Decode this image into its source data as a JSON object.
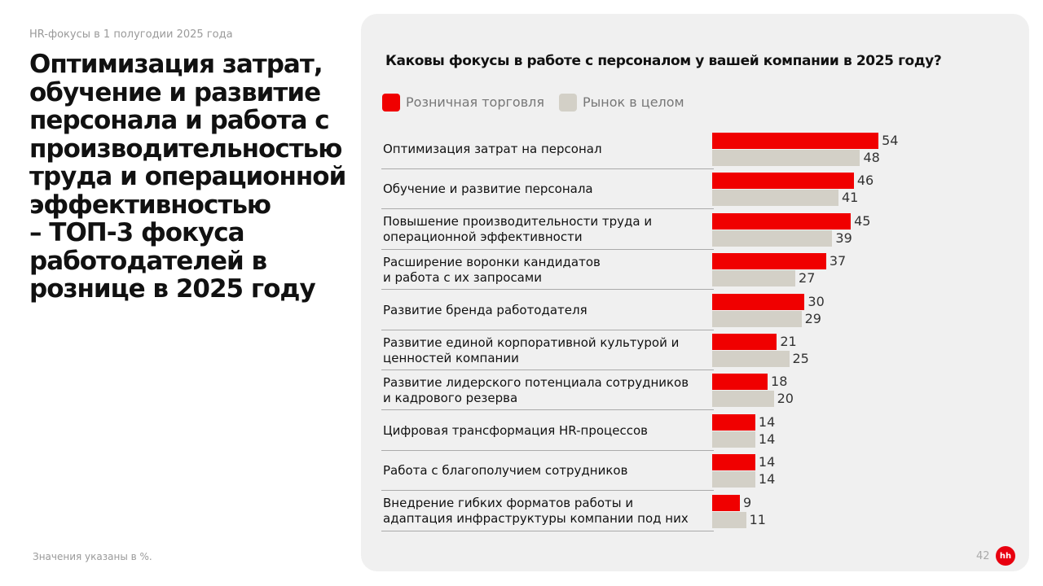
{
  "slide": {
    "subtitle": "HR-фокусы в 1 полугодии 2025 года",
    "headline": [
      "Оптимизация затрат,",
      "обучение и развитие",
      "персонала и работа с",
      "производительностью",
      "труда и операционной",
      "эффективностью",
      "– ТОП-3 фокуса",
      "работодателей в",
      "рознице в 2025 году"
    ],
    "footnote": "Значения указаны в %.",
    "page_number": "42",
    "logo": "hh"
  },
  "chart_data": {
    "type": "bar",
    "orientation": "horizontal",
    "title": "Каковы фокусы в работе с персоналом у вашей компании в 2025 году?",
    "categories": [
      "Оптимизация затрат на персонал",
      "Обучение и развитие персонала",
      "Повышение производительности труда и\nоперационной эффективности",
      "Расширение воронки кандидатов\nи работа с их запросами",
      "Развитие бренда работодателя",
      "Развитие единой корпоративной культурой и\nценностей компании",
      "Развитие лидерского потенциала сотрудников\nи кадрового резерва",
      "Цифровая трансформация HR-процессов",
      "Работа с благополучием сотрудников",
      "Внедрение гибких форматов работы и\nадаптация инфраструктуры компании под них"
    ],
    "series": [
      {
        "name": "Розничная торговля",
        "color": "#f00000",
        "values": [
          54,
          46,
          45,
          37,
          30,
          21,
          18,
          14,
          14,
          9
        ]
      },
      {
        "name": "Рынок в целом",
        "color": "#d3d0c7",
        "values": [
          48,
          41,
          39,
          27,
          29,
          25,
          20,
          14,
          14,
          11
        ]
      }
    ]
  }
}
